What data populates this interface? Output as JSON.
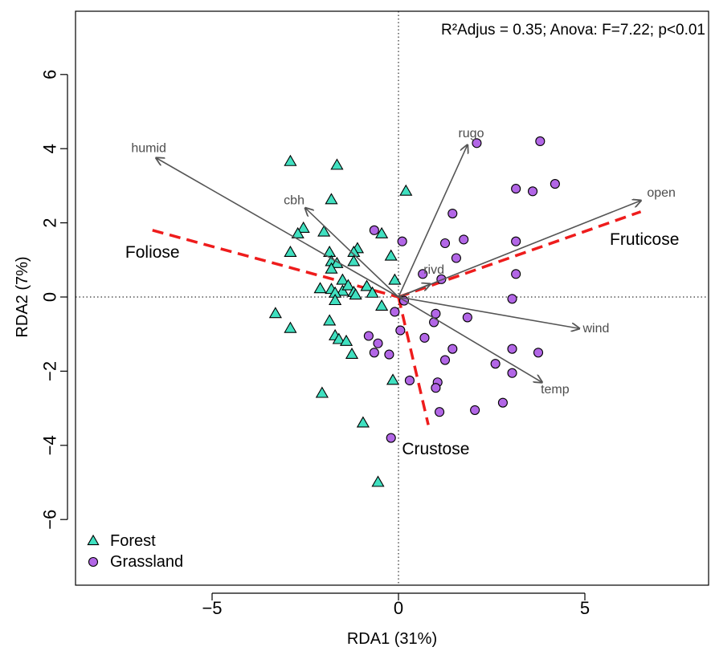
{
  "chart_data": {
    "type": "scatter",
    "title": "",
    "annotation": "R²Adjus = 0.35; Anova: F=7.22; p<0.01",
    "xlabel": "RDA1 (31%)",
    "ylabel": "RDA2 (7%)",
    "xlim": [
      -8.4,
      8.4
    ],
    "ylim": [
      -7.8,
      7.5
    ],
    "xticks": [
      -5,
      0,
      5
    ],
    "yticks": [
      -6,
      -4,
      -2,
      0,
      2,
      4,
      6
    ],
    "xtick_labels": [
      "−5",
      "0",
      "5"
    ],
    "ytick_labels": [
      "−6",
      "−4",
      "−2",
      "0",
      "2",
      "4",
      "6"
    ],
    "grid": false,
    "reference_lines": {
      "x": 0,
      "y": 0,
      "style": "dotted"
    },
    "legend": {
      "position": "bottom-left",
      "entries": [
        {
          "label": "Forest",
          "marker": "triangle",
          "color": "#40E0C0"
        },
        {
          "label": "Grassland",
          "marker": "circle",
          "color": "#B266E6"
        }
      ]
    },
    "series": [
      {
        "name": "Forest",
        "marker": "triangle",
        "color": "#40E0C0",
        "points": [
          [
            -2.9,
            3.65
          ],
          [
            -1.65,
            3.55
          ],
          [
            -1.8,
            2.62
          ],
          [
            0.2,
            2.85
          ],
          [
            -2.55,
            1.85
          ],
          [
            -2.7,
            1.7
          ],
          [
            -2.9,
            1.2
          ],
          [
            -2.0,
            1.75
          ],
          [
            -1.1,
            1.3
          ],
          [
            -1.2,
            1.2
          ],
          [
            -0.45,
            1.7
          ],
          [
            -1.85,
            1.2
          ],
          [
            -1.8,
            0.95
          ],
          [
            -1.65,
            0.9
          ],
          [
            -1.2,
            0.95
          ],
          [
            -0.2,
            1.1
          ],
          [
            -1.8,
            0.75
          ],
          [
            -1.5,
            0.45
          ],
          [
            -2.1,
            0.22
          ],
          [
            -1.8,
            0.2
          ],
          [
            -1.5,
            0.15
          ],
          [
            -1.35,
            0.3
          ],
          [
            -1.7,
            0.1
          ],
          [
            -1.2,
            0.12
          ],
          [
            -0.85,
            0.28
          ],
          [
            -0.1,
            0.45
          ],
          [
            -0.7,
            0.1
          ],
          [
            -1.15,
            0.05
          ],
          [
            -1.7,
            -0.1
          ],
          [
            -0.45,
            -0.25
          ],
          [
            -3.3,
            -0.45
          ],
          [
            -1.85,
            -0.65
          ],
          [
            -2.9,
            -0.85
          ],
          [
            -1.7,
            -1.05
          ],
          [
            -1.6,
            -1.15
          ],
          [
            -1.4,
            -1.2
          ],
          [
            -1.25,
            -1.55
          ],
          [
            -0.15,
            -2.25
          ],
          [
            -2.05,
            -2.6
          ],
          [
            -0.95,
            -3.4
          ],
          [
            -0.55,
            -5.0
          ]
        ]
      },
      {
        "name": "Grassland",
        "marker": "circle",
        "color": "#B266E6",
        "points": [
          [
            2.1,
            4.15
          ],
          [
            3.8,
            4.2
          ],
          [
            3.15,
            2.92
          ],
          [
            3.6,
            2.85
          ],
          [
            4.2,
            3.05
          ],
          [
            1.45,
            2.25
          ],
          [
            -0.65,
            1.8
          ],
          [
            0.1,
            1.5
          ],
          [
            1.25,
            1.45
          ],
          [
            1.75,
            1.55
          ],
          [
            3.15,
            1.5
          ],
          [
            1.55,
            1.05
          ],
          [
            0.65,
            0.62
          ],
          [
            3.15,
            0.62
          ],
          [
            1.15,
            0.48
          ],
          [
            0.15,
            -0.1
          ],
          [
            -0.1,
            -0.4
          ],
          [
            0.05,
            -0.9
          ],
          [
            1.0,
            -0.45
          ],
          [
            1.85,
            -0.55
          ],
          [
            3.05,
            -0.05
          ],
          [
            0.95,
            -0.68
          ],
          [
            -0.8,
            -1.05
          ],
          [
            0.7,
            -1.1
          ],
          [
            -0.55,
            -1.25
          ],
          [
            -0.65,
            -1.5
          ],
          [
            -0.25,
            -1.55
          ],
          [
            1.45,
            -1.4
          ],
          [
            3.05,
            -1.4
          ],
          [
            3.75,
            -1.5
          ],
          [
            1.25,
            -1.7
          ],
          [
            2.6,
            -1.8
          ],
          [
            3.05,
            -2.05
          ],
          [
            0.3,
            -2.25
          ],
          [
            1.05,
            -2.3
          ],
          [
            1.0,
            -2.45
          ],
          [
            2.8,
            -2.85
          ],
          [
            1.1,
            -3.1
          ],
          [
            2.05,
            -3.05
          ],
          [
            -0.2,
            -3.8
          ]
        ]
      }
    ],
    "vectors": [
      {
        "label": "humid",
        "end": [
          -6.5,
          3.75
        ],
        "label_at": [
          -6.7,
          4.0
        ]
      },
      {
        "label": "cbh",
        "end": [
          -2.5,
          2.4
        ],
        "label_at": [
          -2.8,
          2.6
        ]
      },
      {
        "label": "rugo",
        "end": [
          1.85,
          4.1
        ],
        "label_at": [
          1.95,
          4.4
        ]
      },
      {
        "label": "open",
        "end": [
          6.5,
          2.6
        ],
        "label_at": [
          7.05,
          2.8
        ]
      },
      {
        "label": "rivd",
        "end": [
          0.85,
          0.35
        ],
        "label_at": [
          0.95,
          0.72
        ]
      },
      {
        "label": "wind",
        "end": [
          4.85,
          -0.85
        ],
        "label_at": [
          5.3,
          -0.85
        ]
      },
      {
        "label": "temp",
        "end": [
          3.85,
          -2.3
        ],
        "label_at": [
          4.2,
          -2.5
        ]
      }
    ],
    "group_centroid_lines": [
      {
        "label": "Foliose",
        "from": [
          -6.6,
          1.8
        ],
        "to": [
          0.0,
          0.0
        ],
        "label_at": [
          -6.6,
          1.2
        ]
      },
      {
        "label": "Fruticose",
        "from": [
          0.0,
          0.0
        ],
        "to": [
          6.5,
          2.3
        ],
        "label_at": [
          6.6,
          1.55
        ]
      },
      {
        "label": "Crustose",
        "from": [
          0.0,
          0.0
        ],
        "to": [
          0.8,
          -3.45
        ],
        "label_at": [
          1.0,
          -4.1
        ]
      }
    ],
    "colors": {
      "vector": "#555555",
      "dashed_line": "#ee1c1c",
      "forest": "#40E0C0",
      "grassland": "#B266E6",
      "axis": "#000000"
    }
  }
}
